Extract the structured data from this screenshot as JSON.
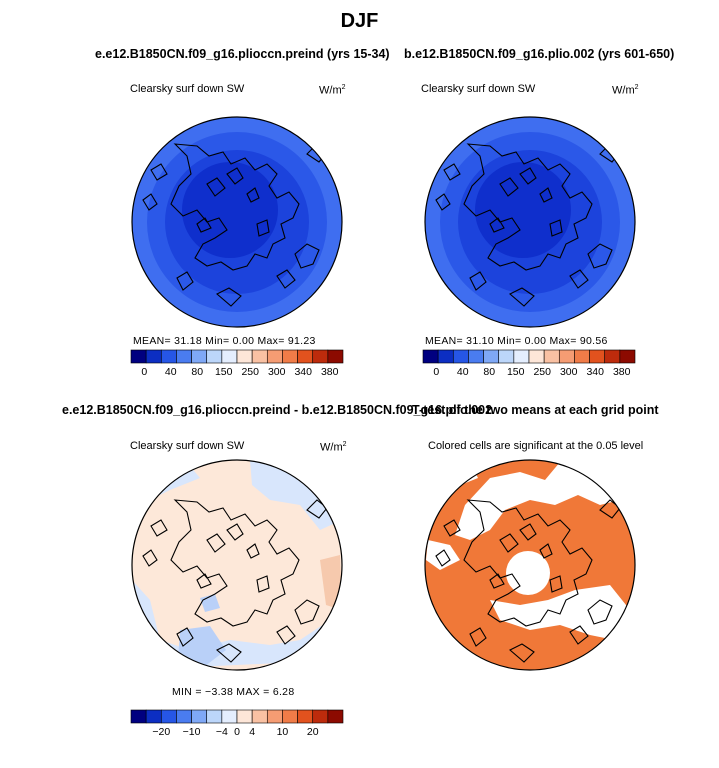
{
  "figure_title": "DJF",
  "chart_data": [
    {
      "type": "heatmap",
      "title": "e.e12.B1850CN.f09_g16.plioccn.preind (yrs 15-34)",
      "variable_label": "Clearsky surf down SW",
      "units": "W/m",
      "units_exp": "2",
      "stats_text": "MEAN=   31.18   Min=     0.00   Max=   91.23",
      "stats": {
        "mean": 31.18,
        "min": 0.0,
        "max": 91.23
      },
      "colorbar": {
        "colors": [
          "#000080",
          "#0c2ec2",
          "#2656e6",
          "#4a7cf0",
          "#7fa8f6",
          "#bcd6fa",
          "#e4eefe",
          "#fde6d8",
          "#f9c1a3",
          "#f59c73",
          "#f07c48",
          "#e2521e",
          "#bd2b0c",
          "#8c0a00"
        ],
        "tick_labels": [
          "0",
          "40",
          "80",
          "150",
          "250",
          "300",
          "340",
          "380"
        ]
      }
    },
    {
      "type": "heatmap",
      "title": "b.e12.B1850CN.f09_g16.plio.002 (yrs 601-650)",
      "variable_label": "Clearsky surf down SW",
      "units": "W/m",
      "units_exp": "2",
      "stats_text": "MEAN=   31.10   Min=     0.00   Max=   90.56",
      "stats": {
        "mean": 31.1,
        "min": 0.0,
        "max": 90.56
      },
      "colorbar": {
        "colors": [
          "#000080",
          "#0c2ec2",
          "#2656e6",
          "#4a7cf0",
          "#7fa8f6",
          "#bcd6fa",
          "#e4eefe",
          "#fde6d8",
          "#f9c1a3",
          "#f59c73",
          "#f07c48",
          "#e2521e",
          "#bd2b0c",
          "#8c0a00"
        ],
        "tick_labels": [
          "0",
          "40",
          "80",
          "150",
          "250",
          "300",
          "340",
          "380"
        ]
      }
    },
    {
      "type": "heatmap",
      "title": "e.e12.B1850CN.f09_g16.plioccn.preind - b.e12.B1850CN.f09_g16.plio.002",
      "variable_label": "Clearsky surf down SW",
      "units": "W/m",
      "units_exp": "2",
      "stats_text": "MIN =   −3.38   MAX =    6.28",
      "stats": {
        "min": -3.38,
        "max": 6.28
      },
      "colorbar": {
        "colors": [
          "#000080",
          "#0c2ec2",
          "#2656e6",
          "#4a7cf0",
          "#7fa8f6",
          "#bcd6fa",
          "#e4eefe",
          "#fde6d8",
          "#f9c1a3",
          "#f59c73",
          "#f07c48",
          "#e2521e",
          "#bd2b0c",
          "#8c0a00"
        ],
        "tick_labels": [
          "−20",
          "−10",
          "−4",
          "0",
          "4",
          "10",
          "20"
        ]
      }
    },
    {
      "type": "heatmap",
      "title": "T-test of the two means at each grid point",
      "variable_label": "Colored cells are significant at the 0.05 level",
      "significance_color": "#f07838"
    }
  ],
  "colors": {
    "ring_outer": "#3f6ef0",
    "ring_mid": "#2b58e8",
    "ring_inner": "#1c43dc",
    "core": "#0f2fcc",
    "diff_bg": "#fde8d9",
    "diff_neg_light": "#d8e6fc",
    "diff_neg_mid": "#b9d0f8",
    "diff_pos_mid": "#f6c9ad",
    "ttest_fill": "#f07838",
    "coast": "#000000"
  }
}
